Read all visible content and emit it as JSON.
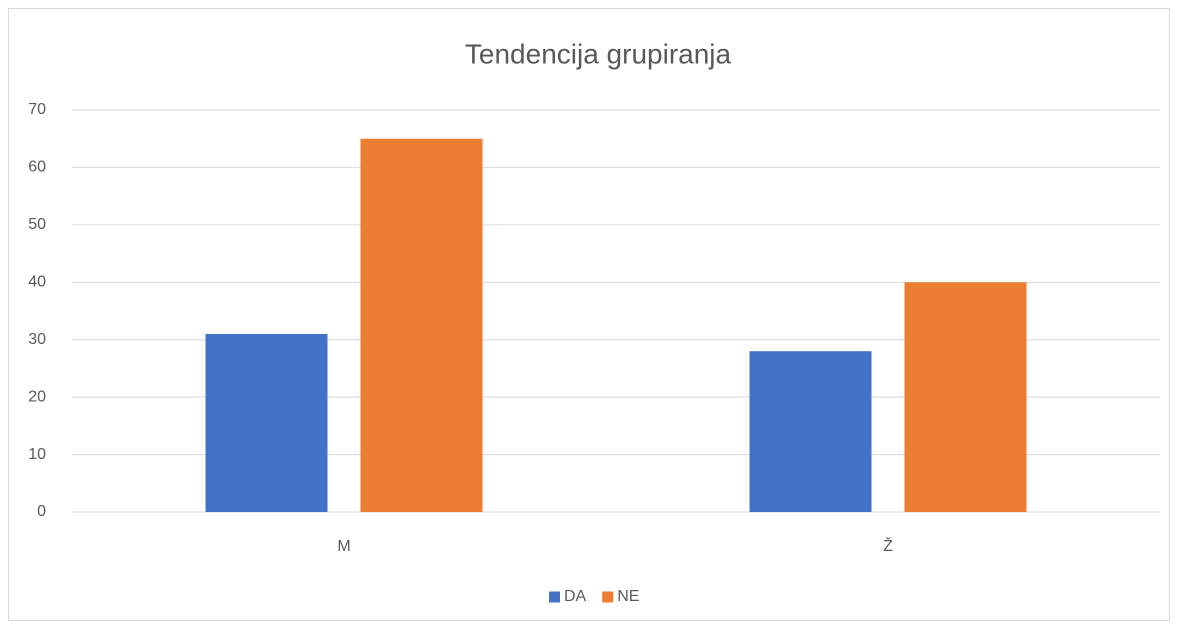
{
  "chart_data": {
    "type": "bar",
    "title": "Tendencija grupiranja",
    "categories": [
      "M",
      "Ž"
    ],
    "series": [
      {
        "name": "DA",
        "color": "#4472c4",
        "values": [
          31,
          28
        ]
      },
      {
        "name": "NE",
        "color": "#ed7d31",
        "values": [
          65,
          40
        ]
      }
    ],
    "ylim": [
      0,
      70
    ],
    "yticks": [
      0,
      10,
      20,
      30,
      40,
      50,
      60,
      70
    ],
    "grid": true,
    "legend": "bottom"
  }
}
